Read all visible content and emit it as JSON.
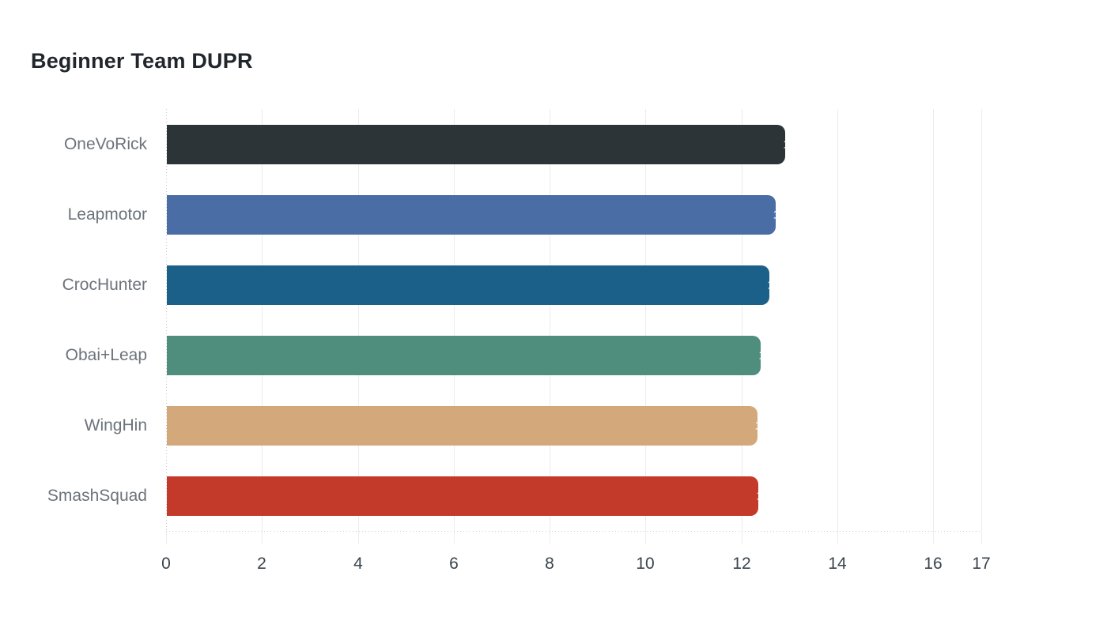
{
  "title": "Beginner Team DUPR",
  "chart_data": {
    "type": "bar",
    "orientation": "horizontal",
    "title": "Beginner Team DUPR",
    "xlabel": "",
    "ylabel": "",
    "categories": [
      "OneVoRick",
      "Leapmotor",
      "CrocHunter",
      "Obai+Leap",
      "WingHin",
      "SmashSquad"
    ],
    "values": [
      12.9,
      12.69,
      12.57,
      12.39,
      12.31,
      12.34
    ],
    "value_labels": [
      "12.90",
      "12.69",
      "12.57",
      "12.39",
      "12.31",
      "12.34"
    ],
    "bar_colors": [
      "#2c3438",
      "#4b6da6",
      "#1b6089",
      "#4f8e7d",
      "#d3a97c",
      "#c33a2a"
    ],
    "xlim": [
      0,
      17
    ],
    "x_ticks": [
      0,
      2,
      4,
      6,
      8,
      10,
      12,
      14,
      16,
      17
    ],
    "grid": "vertical gridlines on, zero-line and baseline dotted",
    "legend": "none",
    "background": "#ffffff"
  },
  "colors": {
    "title_text": "#20262b",
    "category_label_text": "#6b737b",
    "tick_label_text": "#39444c",
    "gridline": "#ececec",
    "dotted_axis": "#c9c9c9",
    "bar_value_text": "#ffffff"
  }
}
